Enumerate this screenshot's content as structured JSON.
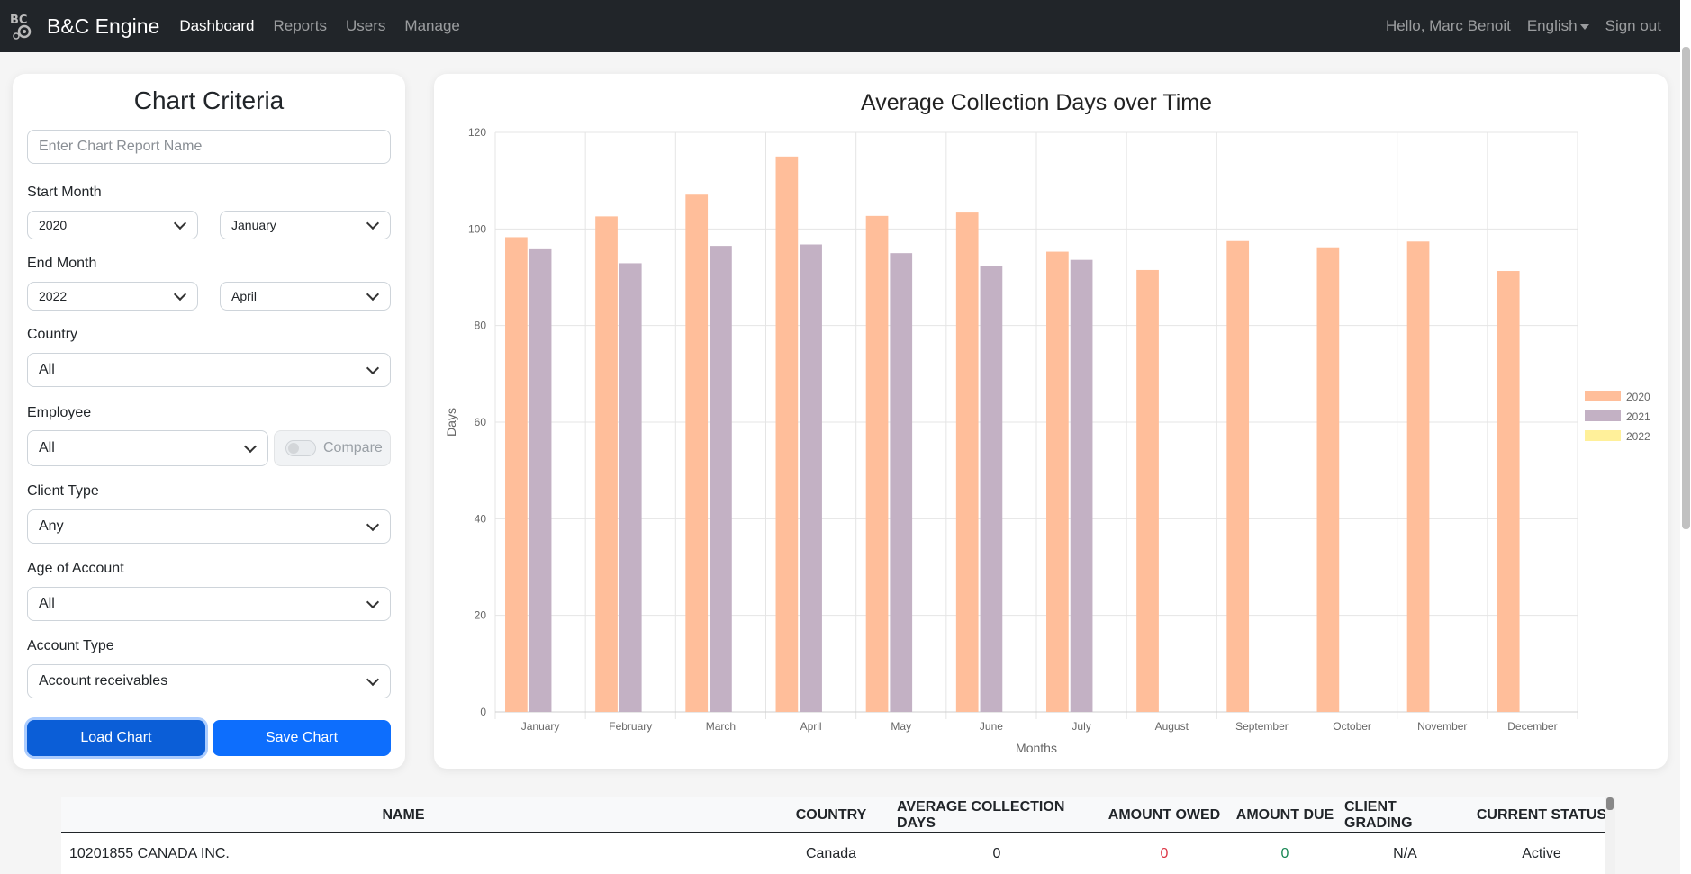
{
  "navbar": {
    "brand": "B&C Engine",
    "links": [
      "Dashboard",
      "Reports",
      "Users",
      "Manage"
    ],
    "greeting": "Hello, Marc Benoit",
    "language": "English",
    "signout": "Sign out"
  },
  "criteria": {
    "title": "Chart Criteria",
    "report_name_placeholder": "Enter Chart Report Name",
    "start_month_label": "Start Month",
    "start_year": "2020",
    "start_month": "January",
    "end_month_label": "End Month",
    "end_year": "2022",
    "end_month": "April",
    "country_label": "Country",
    "country": "All",
    "employee_label": "Employee",
    "employee": "All",
    "compare_label": "Compare",
    "client_type_label": "Client Type",
    "client_type": "Any",
    "age_label": "Age of Account",
    "age": "All",
    "account_type_label": "Account Type",
    "account_type": "Account receivables",
    "load_button": "Load Chart",
    "save_button": "Save Chart"
  },
  "chart_data": {
    "type": "bar",
    "title": "Average Collection Days over Time",
    "xlabel": "Months",
    "ylabel": "Days",
    "ylim": [
      0,
      120
    ],
    "yticks": [
      0,
      20,
      40,
      60,
      80,
      100,
      120
    ],
    "grid": true,
    "legend_position": "right",
    "categories": [
      "January",
      "February",
      "March",
      "April",
      "May",
      "June",
      "July",
      "August",
      "September",
      "October",
      "November",
      "December"
    ],
    "series": [
      {
        "name": "2020",
        "color": "#ffbe9a",
        "values": [
          98.3,
          102.6,
          107.1,
          115.0,
          102.7,
          103.4,
          95.3,
          91.5,
          97.5,
          96.2,
          97.4,
          91.3
        ]
      },
      {
        "name": "2021",
        "color": "#c3b1c4",
        "values": [
          95.8,
          92.9,
          96.5,
          96.8,
          95.0,
          92.3,
          93.6,
          null,
          null,
          null,
          null,
          null
        ]
      },
      {
        "name": "2022",
        "color": "#fff09a",
        "values": [
          null,
          null,
          null,
          null,
          null,
          null,
          null,
          null,
          null,
          null,
          null,
          null
        ]
      }
    ]
  },
  "table": {
    "headers": [
      "Name",
      "Country",
      "Average Collection Days",
      "Amount Owed",
      "Amount Due",
      "Client Grading",
      "Current Status"
    ],
    "rows": [
      [
        "10201855 CANADA INC.",
        "Canada",
        "0",
        "0",
        "0",
        "N/A",
        "Active"
      ]
    ],
    "owed_color": "#dc3545",
    "due_color": "#198754"
  }
}
